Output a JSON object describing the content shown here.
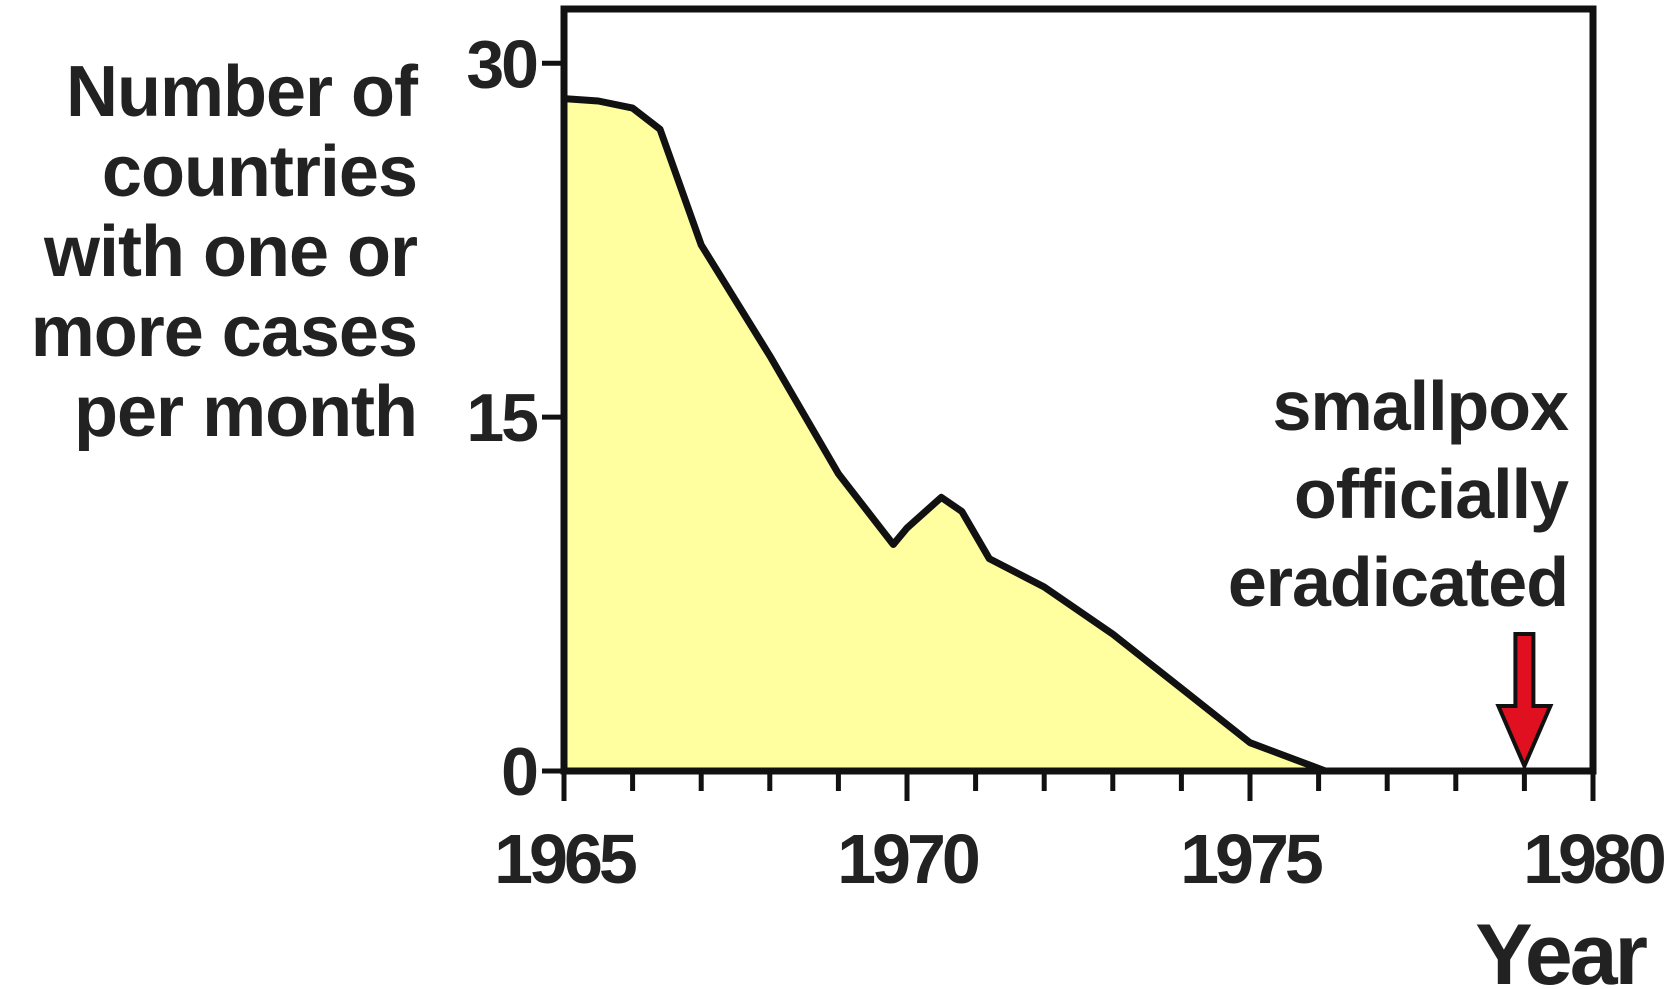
{
  "chart_data": {
    "type": "area",
    "y_label": [
      "Number of",
      "countries",
      "with one or",
      "more cases",
      "per month"
    ],
    "x_label": "Year",
    "x": [
      1965,
      1965.5,
      1966,
      1966.4,
      1967,
      1968,
      1969,
      1969.8,
      1970,
      1970.5,
      1970.8,
      1971.2,
      1972,
      1973,
      1974,
      1975,
      1976.1,
      1980
    ],
    "values": [
      28.5,
      28.4,
      28.1,
      27.2,
      22.3,
      17.6,
      12.6,
      9.6,
      10.3,
      11.6,
      11.0,
      9.0,
      7.8,
      5.8,
      3.5,
      1.2,
      0,
      0
    ],
    "color": "#ffffa0",
    "xlim": [
      1965,
      1980
    ],
    "ylim": [
      0,
      32.3
    ],
    "xticks": [
      1965,
      1970,
      1975,
      1980
    ],
    "xminorticks": [
      1966,
      1967,
      1968,
      1969,
      1971,
      1972,
      1973,
      1974,
      1976,
      1977,
      1978,
      1979
    ],
    "yticks": [
      0,
      15,
      30
    ],
    "annotation": {
      "text": [
        "smallpox",
        "officially",
        "eradicated"
      ],
      "x": 1979,
      "color": "#e01020"
    }
  }
}
